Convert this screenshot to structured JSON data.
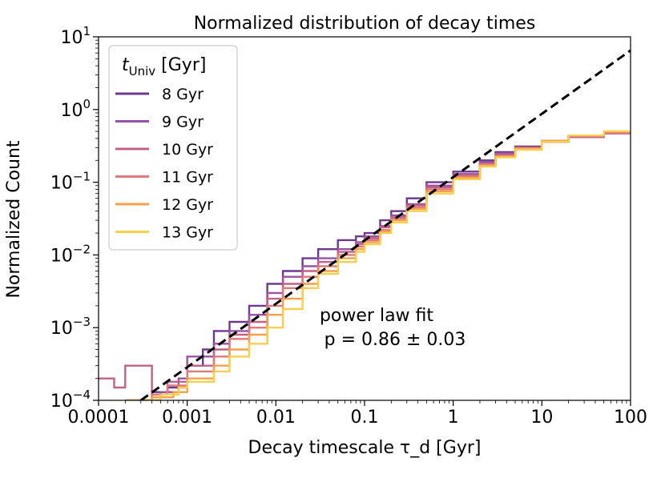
{
  "chart_data": {
    "type": "line",
    "title": "Normalized distribution of decay times",
    "xlabel": "Decay timescale τ_d [Gyr]",
    "ylabel": "Normalized Count",
    "xscale": "log",
    "yscale": "log",
    "xlim": [
      0.0001,
      100
    ],
    "ylim": [
      0.0001,
      10
    ],
    "x_ticks": [
      0.0001,
      0.001,
      0.01,
      0.1,
      1,
      10,
      100
    ],
    "x_tick_labels": [
      "0.0001",
      "0.001",
      "0.01",
      "0.1",
      "1",
      "10",
      "100"
    ],
    "y_ticks": [
      0.0001,
      0.001,
      0.01,
      0.1,
      1,
      10
    ],
    "y_tick_exponents": [
      "-4",
      "-3",
      "-2",
      "-1",
      "0",
      "1"
    ],
    "grid": false,
    "legend": {
      "title": "t_Univ [Gyr]",
      "position": "top-left",
      "entries": [
        "8 Gyr",
        "9 Gyr",
        "10 Gyr",
        "11 Gyr",
        "12 Gyr",
        "13 Gyr"
      ]
    },
    "annotation": {
      "line1": "power law fit",
      "line2": "p = 0.86 ± 0.03"
    },
    "power_law_fit": {
      "label": "",
      "color": "#000000",
      "style": "dashed",
      "points": [
        [
          0.0003,
          0.0001
        ],
        [
          100,
          6.5
        ]
      ]
    },
    "series": [
      {
        "name": "8 Gyr",
        "color": "#6b3a8c",
        "values": [
          [
            0.0003,
            0.0001
          ],
          [
            0.0004,
            0.00013
          ],
          [
            0.0006,
            0.00015
          ],
          [
            0.001,
            0.0003
          ],
          [
            0.0015,
            0.0005
          ],
          [
            0.002,
            0.0009
          ],
          [
            0.003,
            0.0012
          ],
          [
            0.005,
            0.002
          ],
          [
            0.008,
            0.004
          ],
          [
            0.012,
            0.006
          ],
          [
            0.02,
            0.009
          ],
          [
            0.03,
            0.012
          ],
          [
            0.05,
            0.016
          ],
          [
            0.08,
            0.018
          ],
          [
            0.1,
            0.02
          ],
          [
            0.15,
            0.03
          ],
          [
            0.2,
            0.04
          ],
          [
            0.3,
            0.06
          ],
          [
            0.5,
            0.1
          ],
          [
            1,
            0.14
          ],
          [
            2,
            0.2
          ],
          [
            3,
            0.26
          ],
          [
            5,
            0.31
          ],
          [
            10,
            0.37
          ],
          [
            20,
            0.42
          ],
          [
            50,
            0.48
          ],
          [
            100,
            0.5
          ]
        ]
      },
      {
        "name": "9 Gyr",
        "color": "#9a52a6",
        "values": [
          [
            0.0003,
            0.0001
          ],
          [
            0.0005,
            0.00013
          ],
          [
            0.0008,
            0.0002
          ],
          [
            0.001,
            0.0004
          ],
          [
            0.002,
            0.0006
          ],
          [
            0.003,
            0.0009
          ],
          [
            0.005,
            0.0015
          ],
          [
            0.008,
            0.003
          ],
          [
            0.012,
            0.005
          ],
          [
            0.02,
            0.007
          ],
          [
            0.03,
            0.009
          ],
          [
            0.05,
            0.012
          ],
          [
            0.08,
            0.015
          ],
          [
            0.1,
            0.018
          ],
          [
            0.15,
            0.025
          ],
          [
            0.2,
            0.035
          ],
          [
            0.3,
            0.05
          ],
          [
            0.5,
            0.09
          ],
          [
            1,
            0.13
          ],
          [
            2,
            0.19
          ],
          [
            3,
            0.25
          ],
          [
            5,
            0.3
          ],
          [
            10,
            0.36
          ],
          [
            20,
            0.42
          ],
          [
            50,
            0.47
          ],
          [
            100,
            0.49
          ]
        ]
      },
      {
        "name": "10 Gyr",
        "color": "#c36087",
        "values": [
          [
            0.0001,
            0.0002
          ],
          [
            0.00015,
            0.00015
          ],
          [
            0.0002,
            0.0003
          ],
          [
            0.0004,
            0.00012
          ],
          [
            0.0006,
            0.00018
          ],
          [
            0.001,
            0.0003
          ],
          [
            0.002,
            0.0005
          ],
          [
            0.003,
            0.0008
          ],
          [
            0.005,
            0.0012
          ],
          [
            0.008,
            0.0025
          ],
          [
            0.012,
            0.004
          ],
          [
            0.02,
            0.006
          ],
          [
            0.03,
            0.008
          ],
          [
            0.05,
            0.011
          ],
          [
            0.08,
            0.014
          ],
          [
            0.1,
            0.017
          ],
          [
            0.15,
            0.024
          ],
          [
            0.2,
            0.033
          ],
          [
            0.3,
            0.048
          ],
          [
            0.5,
            0.085
          ],
          [
            1,
            0.125
          ],
          [
            2,
            0.18
          ],
          [
            3,
            0.24
          ],
          [
            5,
            0.3
          ],
          [
            10,
            0.36
          ],
          [
            20,
            0.42
          ],
          [
            50,
            0.47
          ],
          [
            100,
            0.5
          ]
        ]
      },
      {
        "name": "11 Gyr",
        "color": "#e07a7a",
        "values": [
          [
            0.0002,
            0.0001
          ],
          [
            0.0004,
            0.00012
          ],
          [
            0.0006,
            0.00016
          ],
          [
            0.001,
            0.00025
          ],
          [
            0.002,
            0.0004
          ],
          [
            0.003,
            0.0007
          ],
          [
            0.005,
            0.001
          ],
          [
            0.008,
            0.002
          ],
          [
            0.012,
            0.0035
          ],
          [
            0.02,
            0.005
          ],
          [
            0.03,
            0.007
          ],
          [
            0.05,
            0.01
          ],
          [
            0.08,
            0.013
          ],
          [
            0.1,
            0.016
          ],
          [
            0.15,
            0.022
          ],
          [
            0.2,
            0.031
          ],
          [
            0.3,
            0.045
          ],
          [
            0.5,
            0.08
          ],
          [
            1,
            0.12
          ],
          [
            2,
            0.175
          ],
          [
            3,
            0.23
          ],
          [
            5,
            0.29
          ],
          [
            10,
            0.36
          ],
          [
            20,
            0.43
          ],
          [
            50,
            0.48
          ],
          [
            100,
            0.51
          ]
        ]
      },
      {
        "name": "12 Gyr",
        "color": "#f5a04a",
        "values": [
          [
            0.0002,
            0.0001
          ],
          [
            0.0004,
            0.00011
          ],
          [
            0.0007,
            0.00013
          ],
          [
            0.001,
            0.0002
          ],
          [
            0.002,
            0.0003
          ],
          [
            0.003,
            0.0005
          ],
          [
            0.005,
            0.0008
          ],
          [
            0.008,
            0.0015
          ],
          [
            0.012,
            0.0025
          ],
          [
            0.02,
            0.004
          ],
          [
            0.03,
            0.006
          ],
          [
            0.05,
            0.009
          ],
          [
            0.08,
            0.012
          ],
          [
            0.1,
            0.015
          ],
          [
            0.15,
            0.021
          ],
          [
            0.2,
            0.03
          ],
          [
            0.3,
            0.043
          ],
          [
            0.5,
            0.075
          ],
          [
            1,
            0.115
          ],
          [
            2,
            0.17
          ],
          [
            3,
            0.225
          ],
          [
            5,
            0.29
          ],
          [
            10,
            0.37
          ],
          [
            20,
            0.44
          ],
          [
            50,
            0.5
          ],
          [
            100,
            0.52
          ]
        ]
      },
      {
        "name": "13 Gyr",
        "color": "#f7cf4d",
        "values": [
          [
            0.0003,
            0.0001
          ],
          [
            0.0005,
            0.00012
          ],
          [
            0.0008,
            0.00015
          ],
          [
            0.001,
            0.00018
          ],
          [
            0.002,
            0.00025
          ],
          [
            0.003,
            0.0004
          ],
          [
            0.005,
            0.0006
          ],
          [
            0.008,
            0.001
          ],
          [
            0.012,
            0.0018
          ],
          [
            0.02,
            0.0035
          ],
          [
            0.03,
            0.0055
          ],
          [
            0.05,
            0.008
          ],
          [
            0.08,
            0.011
          ],
          [
            0.1,
            0.014
          ],
          [
            0.15,
            0.02
          ],
          [
            0.2,
            0.028
          ],
          [
            0.3,
            0.04
          ],
          [
            0.5,
            0.07
          ],
          [
            1,
            0.11
          ],
          [
            2,
            0.165
          ],
          [
            3,
            0.22
          ],
          [
            5,
            0.28
          ],
          [
            10,
            0.36
          ],
          [
            20,
            0.44
          ],
          [
            50,
            0.5
          ],
          [
            100,
            0.52
          ]
        ]
      }
    ]
  }
}
